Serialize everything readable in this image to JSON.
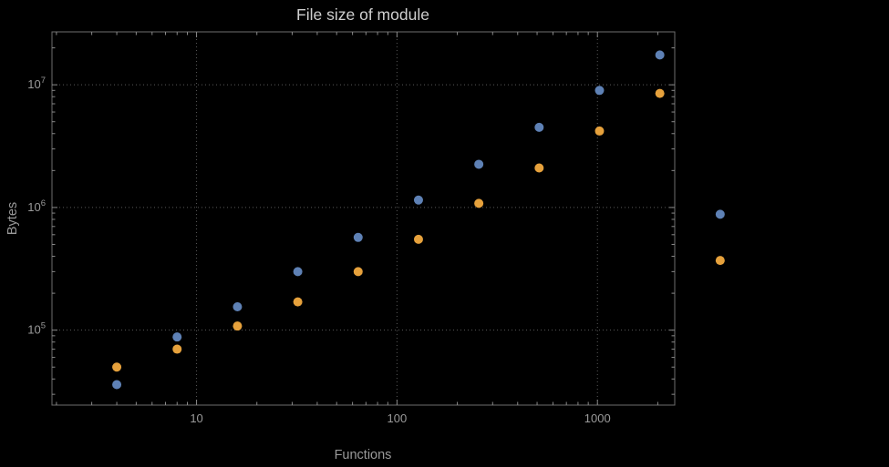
{
  "chart_data": {
    "type": "scatter",
    "title": "File size of module",
    "xlabel": "Functions",
    "ylabel": "Bytes",
    "x_scale": "log",
    "y_scale": "log",
    "xlim": [
      1.9,
      2430
    ],
    "ylim": [
      24500,
      27000000
    ],
    "x_ticks": [
      10,
      100,
      1000
    ],
    "x_tick_labels": [
      "10",
      "100",
      "1000"
    ],
    "y_ticks": [
      100000,
      1000000,
      10000000
    ],
    "y_tick_exponents": [
      5,
      6,
      7
    ],
    "grid": "dotted-major",
    "frame": true,
    "legend_position": "none",
    "x": [
      4,
      8,
      16,
      32,
      64,
      128,
      256,
      512,
      1024,
      2048,
      4096
    ],
    "series": [
      {
        "name": "series-blue",
        "color": "#5E81B5",
        "values": [
          36000,
          88000,
          155000,
          300000,
          570000,
          1150000,
          2250000,
          4500000,
          9000000,
          17500000,
          880000
        ]
      },
      {
        "name": "series-orange",
        "color": "#E6A13C",
        "values": [
          50000,
          70000,
          108000,
          170000,
          300000,
          550000,
          1080000,
          2100000,
          4200000,
          8500000,
          370000
        ]
      }
    ],
    "colors": {
      "background": "#000000",
      "frame": "#6E6E6E",
      "grid": "#5A5A5A",
      "tick": "#8A8A8A",
      "tick_label": "#9A9A9A",
      "title": "#CFCFCF",
      "axis_label": "#9A9A9A"
    }
  }
}
